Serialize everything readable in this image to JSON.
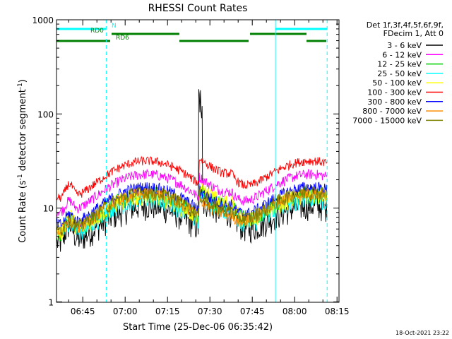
{
  "chart_data": {
    "type": "line",
    "title": "RHESSI Count Rates",
    "xlabel": "Start Time (25-Dec-06 06:35:42)",
    "ylabel_main": "Count Rate (s",
    "ylabel_sup1": "-1",
    "ylabel_mid": " detector segment",
    "ylabel_sup2": "-1",
    "ylabel_end": ")",
    "yscale": "log",
    "ylim": [
      1,
      1000
    ],
    "xlim_minutes": [
      0,
      100
    ],
    "x_ticks": [
      {
        "m": 9.3,
        "label": "06:45"
      },
      {
        "m": 24.3,
        "label": "07:00"
      },
      {
        "m": 39.3,
        "label": "07:15"
      },
      {
        "m": 54.3,
        "label": "07:30"
      },
      {
        "m": 69.3,
        "label": "07:45"
      },
      {
        "m": 84.3,
        "label": "08:00"
      },
      {
        "m": 99.3,
        "label": "08:15"
      }
    ],
    "y_ticks": [
      {
        "v": 1,
        "label": "1"
      },
      {
        "v": 10,
        "label": "10"
      },
      {
        "v": 100,
        "label": "100"
      },
      {
        "v": 1000,
        "label": "1000"
      }
    ],
    "legend_header": [
      "Det 1f,3f,4f,5f,6f,9f,",
      "FDecim 1, Att 0"
    ],
    "series": [
      {
        "name": "3 - 6 keV",
        "color": "#000000",
        "scale": 0.72,
        "flare": 1.8,
        "noise": 0.2,
        "spike": 200
      },
      {
        "name": "6 - 12 keV",
        "color": "#ff00ff",
        "scale": 1.55,
        "flare": 1.0,
        "noise": 0.08,
        "spike": 0
      },
      {
        "name": "12 - 25 keV",
        "color": "#00d000",
        "scale": 0.95,
        "flare": 1.4,
        "noise": 0.14,
        "spike": 0
      },
      {
        "name": "25 - 50 keV",
        "color": "#00ffff",
        "scale": 0.88,
        "flare": 1.5,
        "noise": 0.16,
        "spike": 0
      },
      {
        "name": "50 - 100 keV",
        "color": "#ffff00",
        "scale": 0.93,
        "flare": 1.7,
        "noise": 0.14,
        "spike": 0
      },
      {
        "name": "100 - 300 keV",
        "color": "#ff0000",
        "scale": 2.15,
        "flare": 1.35,
        "noise": 0.07,
        "spike": 0
      },
      {
        "name": "300 - 800 keV",
        "color": "#0000ff",
        "scale": 1.12,
        "flare": 1.0,
        "noise": 0.1,
        "spike": 0
      },
      {
        "name": "800 - 7000 keV",
        "color": "#ff8c00",
        "scale": 0.97,
        "flare": 0.8,
        "noise": 0.1,
        "spike": 0
      },
      {
        "name": "7000 - 15000 keV",
        "color": "#808000",
        "scale": 1.0,
        "flare": 1.0,
        "noise": 0.11,
        "spike": 0
      }
    ],
    "solid_vlines": [
      0,
      77.5
    ],
    "dashed_vlines": [
      17.6,
      95.8
    ],
    "flags": [
      {
        "label": "N",
        "color": "#00ffff",
        "y": 41,
        "segments": [
          [
            0,
            17.6
          ],
          [
            77.5,
            95.8
          ]
        ],
        "label_at": 19.5
      },
      {
        "label": "RD0",
        "color": "#008000",
        "y": 48,
        "segments": [
          [
            19.5,
            43.5
          ],
          [
            68.5,
            88.5
          ]
        ],
        "label_at": 12.0
      },
      {
        "label": "RD6",
        "color": "#008000",
        "y": 58,
        "segments": [
          [
            0,
            19.0
          ],
          [
            43.5,
            68.0
          ],
          [
            88.5,
            95.5
          ]
        ],
        "label_at": 21.0
      }
    ]
  },
  "timestamp": "18-Oct-2021 23:22"
}
